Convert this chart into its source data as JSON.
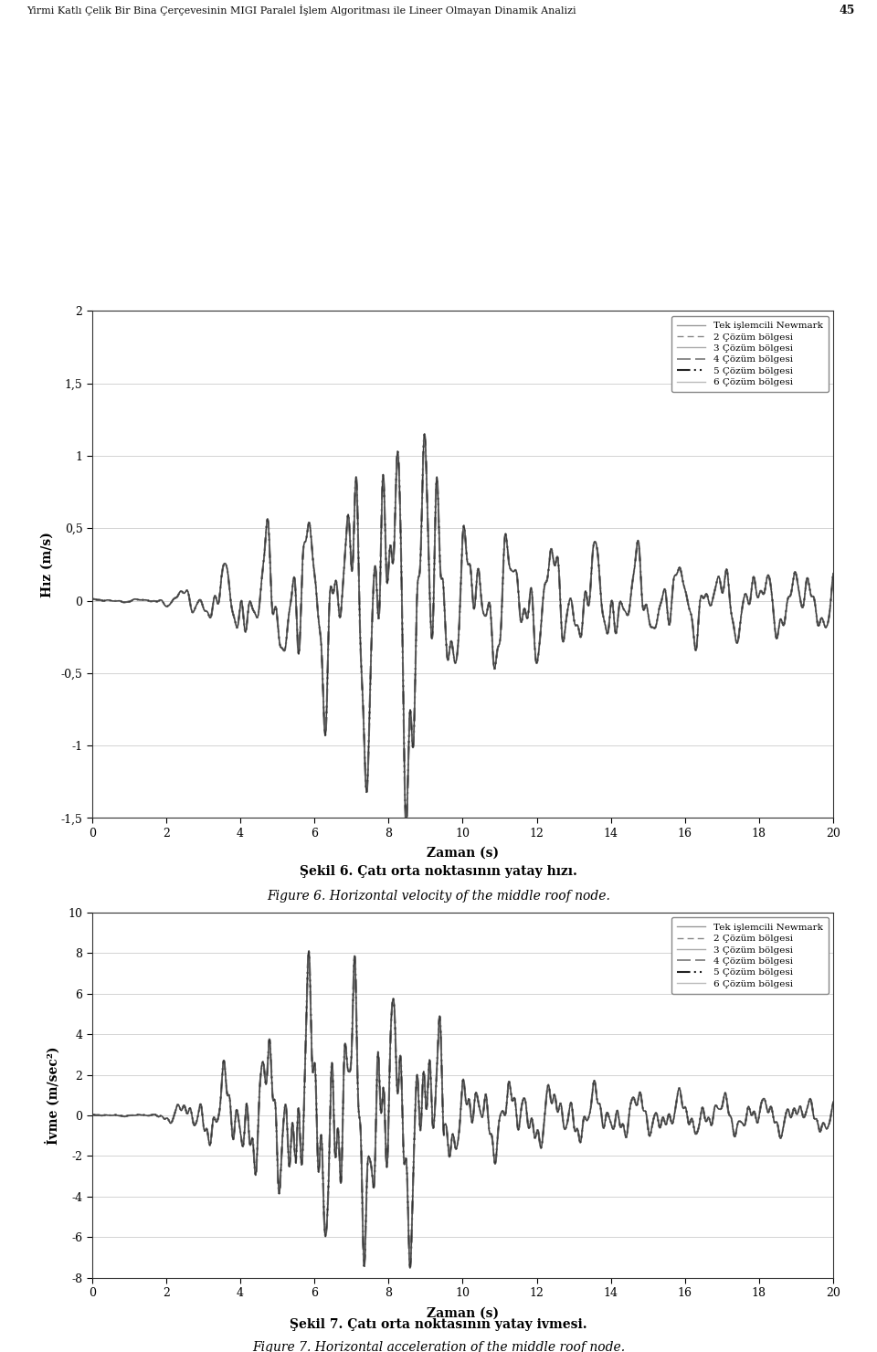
{
  "fig_width": 9.6,
  "fig_height": 14.8,
  "dpi": 100,
  "bg_color": "#ffffff",
  "header_text": "Yirmi Katlı Çelik Bir Bina Çerçevesinin MIGI Paralel İşlem Algoritması ile Lineer Olmayan Dinamik Analizi",
  "header_page": "45",
  "plot1": {
    "ylabel": "Hız (m/s)",
    "xlabel": "Zaman (s)",
    "ylim": [
      -1.5,
      2.0
    ],
    "yticks": [
      -1.5,
      -1.0,
      -0.5,
      0.0,
      0.5,
      1.0,
      1.5,
      2.0
    ],
    "ytick_labels": [
      "-1,5",
      "-1",
      "-0,5",
      "0",
      "0,5",
      "1",
      "1,5",
      "2"
    ],
    "xlim": [
      0,
      20
    ],
    "xticks": [
      0,
      2,
      4,
      6,
      8,
      10,
      12,
      14,
      16,
      18,
      20
    ],
    "caption_tr": "Şekil 6. Çatı orta noktasının yatay hızı.",
    "caption_en": "Figure 6. Horizontal velocity of the middle roof node."
  },
  "plot2": {
    "ylabel": "İvme (m/sec²)",
    "xlabel": "Zaman (s)",
    "ylim": [
      -8.0,
      10.0
    ],
    "yticks": [
      -8,
      -6,
      -4,
      -2,
      0,
      2,
      4,
      6,
      8,
      10
    ],
    "ytick_labels": [
      "-8",
      "-6",
      "-4",
      "-2",
      "0",
      "2",
      "4",
      "6",
      "8",
      "10"
    ],
    "xlim": [
      0,
      20
    ],
    "xticks": [
      0,
      2,
      4,
      6,
      8,
      10,
      12,
      14,
      16,
      18,
      20
    ],
    "caption_tr": "Şekil 7. Çatı orta noktasının yatay ivmesi.",
    "caption_en": "Figure 7. Horizontal acceleration of the middle roof node."
  },
  "legend_entries": [
    {
      "label": "Tek işlemcili Newmark",
      "color": "#999999",
      "linewidth": 1.0,
      "dashes": []
    },
    {
      "label": "2 Çözüm bölgesi",
      "color": "#888888",
      "linewidth": 1.0,
      "dashes": [
        5,
        3
      ]
    },
    {
      "label": "3 Çözüm bölgesi",
      "color": "#aaaaaa",
      "linewidth": 1.0,
      "dashes": []
    },
    {
      "label": "4 Çözüm bölgesi",
      "color": "#777777",
      "linewidth": 1.2,
      "dashes": [
        9,
        3
      ]
    },
    {
      "label": "5 Çözüm bölgesi",
      "color": "#222222",
      "linewidth": 1.5,
      "dashes": [
        7,
        2,
        1,
        2,
        1,
        2
      ]
    },
    {
      "label": "6 Çözüm bölgesi",
      "color": "#bbbbbb",
      "linewidth": 1.0,
      "dashes": []
    }
  ]
}
